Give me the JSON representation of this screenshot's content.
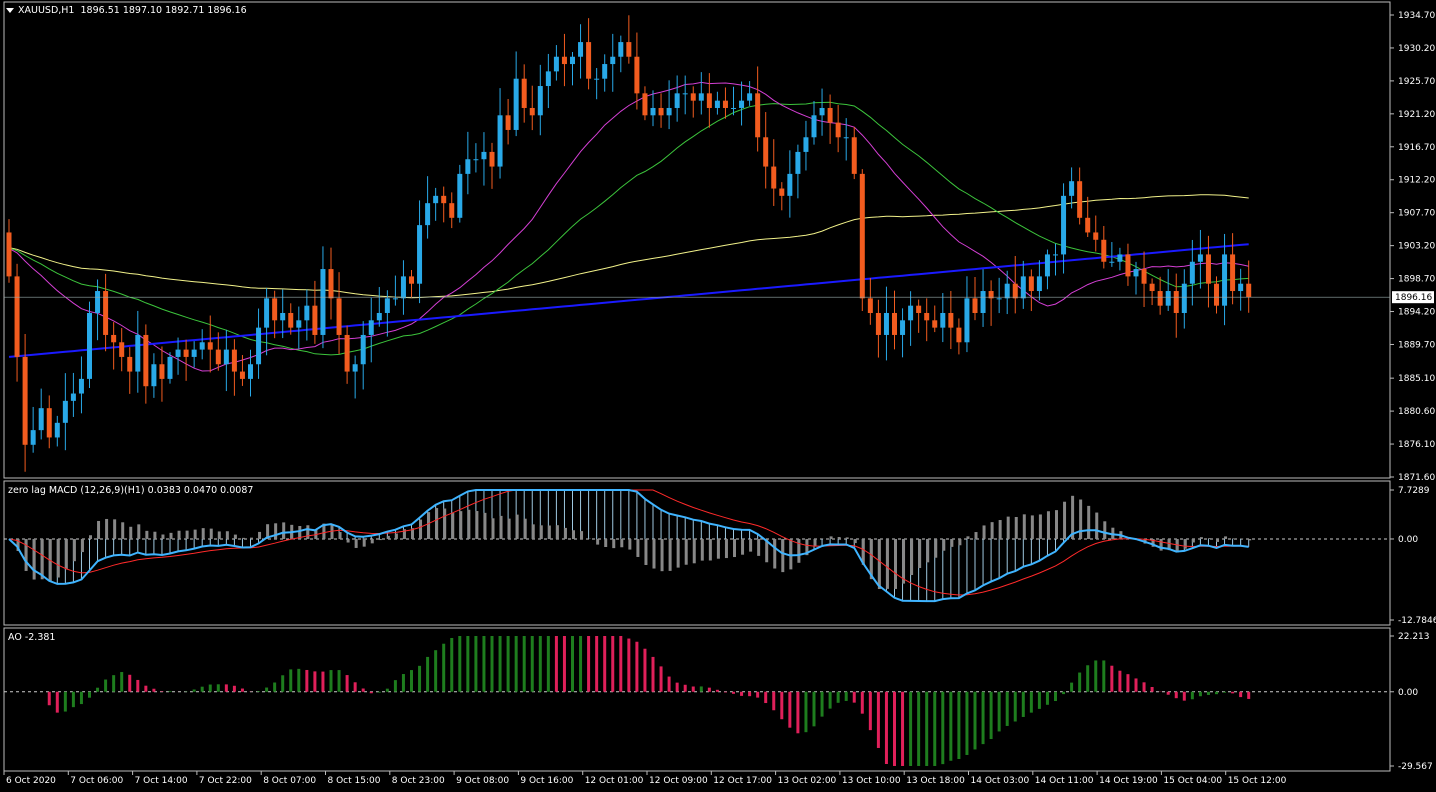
{
  "header": {
    "symbol": "XAUUSD,H1",
    "ohlc": "1896.51 1897.10 1892.71 1896.16"
  },
  "macd_title": "zero lag MACD (12,26,9)(H1) 0.0383 0.0470 0.0087",
  "ao_title": "AO -2.381",
  "colors": {
    "bull": "#29a9e8",
    "bear": "#f25c1f",
    "ma_blue": "#1a1aff",
    "ma_yellow": "#f2f28a",
    "ma_green": "#3cc43c",
    "ma_magenta": "#d43fd4",
    "macd_line": "#3fb4ff",
    "signal_line": "#ff2a2a",
    "ao_up": "#1e7d1e",
    "ao_down": "#e0205a"
  },
  "chart_data": [
    {
      "type": "candlestick",
      "ylim": [
        1871.6,
        1934.7
      ],
      "y_ticks": [
        "1934.70",
        "1930.20",
        "1925.70",
        "1921.20",
        "1916.70",
        "1912.20",
        "1907.70",
        "1903.20",
        "1898.70",
        "1894.20",
        "1889.70",
        "1885.10",
        "1880.60",
        "1876.10",
        "1871.60"
      ],
      "current_price": "1896.16",
      "x_labels": [
        "6 Oct 2020",
        "7 Oct 06:00",
        "7 Oct 14:00",
        "7 Oct 22:00",
        "8 Oct 07:00",
        "8 Oct 15:00",
        "8 Oct 23:00",
        "9 Oct 08:00",
        "9 Oct 16:00",
        "12 Oct 01:00",
        "12 Oct 09:00",
        "12 Oct 17:00",
        "13 Oct 02:00",
        "13 Oct 10:00",
        "13 Oct 18:00",
        "14 Oct 03:00",
        "14 Oct 11:00",
        "14 Oct 19:00",
        "15 Oct 04:00",
        "15 Oct 12:00"
      ],
      "close": [
        1899,
        1888,
        1876,
        1878,
        1881,
        1877,
        1879,
        1882,
        1883,
        1885,
        1894,
        1897,
        1891,
        1890,
        1888,
        1886,
        1891,
        1884,
        1887,
        1885,
        1888,
        1889,
        1888,
        1889,
        1890,
        1889,
        1887,
        1889,
        1886,
        1885,
        1887,
        1892,
        1896,
        1893,
        1894,
        1892,
        1893,
        1895,
        1891,
        1900,
        1896,
        1891,
        1886,
        1887,
        1891,
        1893,
        1894,
        1896,
        1896,
        1899,
        1898,
        1906,
        1909,
        1910,
        1909,
        1907,
        1913,
        1915,
        1915,
        1916,
        1914,
        1921,
        1919,
        1926,
        1922,
        1921,
        1925,
        1927,
        1929,
        1928,
        1929,
        1931,
        1926,
        1926,
        1928,
        1929,
        1931,
        1929,
        1924,
        1921,
        1922,
        1921,
        1922,
        1924,
        1924,
        1923,
        1924,
        1922,
        1923,
        1922,
        1922,
        1923,
        1924,
        1918,
        1914,
        1911,
        1910,
        1913,
        1916,
        1918,
        1921,
        1922,
        1920,
        1918,
        1918,
        1913,
        1896,
        1894,
        1891,
        1894,
        1891,
        1893,
        1895,
        1894,
        1893,
        1892,
        1894,
        1892,
        1890,
        1896,
        1894,
        1897,
        1896,
        1896,
        1898,
        1896,
        1899,
        1897,
        1899,
        1902,
        1902,
        1910,
        1912,
        1907,
        1905,
        1904,
        1901,
        1901,
        1902,
        1899,
        1900,
        1898,
        1897,
        1895,
        1897,
        1894,
        1898,
        1901,
        1902,
        1898,
        1895,
        1902,
        1897,
        1898,
        1896.16
      ],
      "ma_periods_note": "moving averages drawn from close",
      "zero_line": 0
    },
    {
      "type": "macd",
      "ylim": [
        -12.7846,
        7.7289
      ],
      "y_ticks": [
        "7.7289",
        "0.00",
        "-12.7846"
      ],
      "series": [
        {
          "name": "zero lag MACD"
        },
        {
          "name": "signal"
        },
        {
          "name": "histogram"
        }
      ]
    },
    {
      "type": "histogram",
      "ylim": [
        -29.567,
        22.213
      ],
      "y_ticks": [
        "22.213",
        "0.00",
        "-29.567"
      ],
      "series": [
        {
          "name": "AO"
        }
      ]
    }
  ]
}
